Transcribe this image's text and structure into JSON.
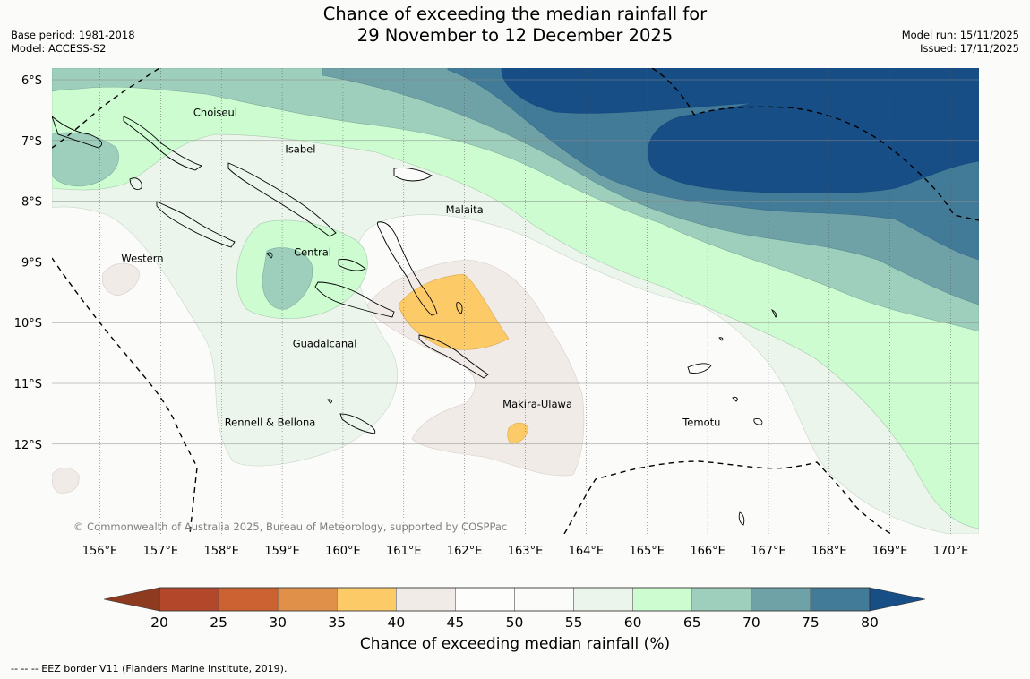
{
  "title": {
    "line1": "Chance of exceeding the median rainfall for",
    "line2": "29 November to 12 December 2025"
  },
  "meta_left": {
    "base_period": "Base period: 1981-2018",
    "model": "Model: ACCESS-S2"
  },
  "meta_right": {
    "model_run": "Model run: 15/11/2025",
    "issued": "Issued: 17/11/2025"
  },
  "map": {
    "lon_labels": [
      "156°E",
      "157°E",
      "158°E",
      "159°E",
      "160°E",
      "161°E",
      "162°E",
      "163°E",
      "164°E",
      "165°E",
      "166°E",
      "167°E",
      "168°E",
      "169°E",
      "170°E"
    ],
    "lat_labels": [
      "6°S",
      "7°S",
      "8°S",
      "9°S",
      "10°S",
      "11°S",
      "12°S"
    ],
    "provinces": [
      {
        "name": "Choiseul",
        "lon": 157.9,
        "lat": -6.6
      },
      {
        "name": "Isabel",
        "lon": 159.3,
        "lat": -7.2
      },
      {
        "name": "Malaita",
        "lon": 162.0,
        "lat": -8.2
      },
      {
        "name": "Central",
        "lon": 159.5,
        "lat": -8.9
      },
      {
        "name": "Western",
        "lon": 156.7,
        "lat": -9.0
      },
      {
        "name": "Guadalcanal",
        "lon": 159.7,
        "lat": -10.4
      },
      {
        "name": "Makira-Ulawa",
        "lon": 163.2,
        "lat": -11.4
      },
      {
        "name": "Temotu",
        "lon": 165.9,
        "lat": -11.7
      },
      {
        "name": "Rennell & Bellona",
        "lon": 158.8,
        "lat": -11.7
      }
    ],
    "copyright": "© Commonwealth of Australia 2025, Bureau of Meteorology, supported by COSPPac"
  },
  "colorbar": {
    "ticks": [
      "20",
      "25",
      "30",
      "35",
      "40",
      "45",
      "50",
      "55",
      "60",
      "65",
      "70",
      "75",
      "80"
    ],
    "colors": [
      "#b2472a",
      "#cc6232",
      "#e09048",
      "#fdca68",
      "#f1ebe8",
      "#fdfdfb",
      "#fbfcfa",
      "#ebf5eb",
      "#ccfcd0",
      "#9dcfbc",
      "#6ea2a6",
      "#427b98",
      "#174e86"
    ],
    "under_color": "#8e3a20",
    "over_color": "#174e86",
    "label": "Chance of exceeding median rainfall (%)"
  },
  "chart_data": {
    "type": "heatmap",
    "title": "Chance of exceeding the median rainfall for 29 November to 12 December 2025",
    "lon_range": [
      155.3,
      170.5
    ],
    "lat_range": [
      -13.3,
      -5.8
    ],
    "colorbar_range": [
      20,
      80
    ],
    "contour_step": 5,
    "regions": [
      {
        "label": "75-80+",
        "lon_range": [
          163.5,
          170.5
        ],
        "lat_range": [
          -8.0,
          -5.8
        ]
      },
      {
        "label": "40-45",
        "lon_range": [
          161.0,
          163.0
        ],
        "lat_range": [
          -10.5,
          -9.2
        ]
      },
      {
        "label": "35-40 (small patch)",
        "lon": 162.9,
        "lat": -11.8
      }
    ]
  },
  "footer": "--  --  -- EEZ border V11 (Flanders Marine Institute, 2019)."
}
